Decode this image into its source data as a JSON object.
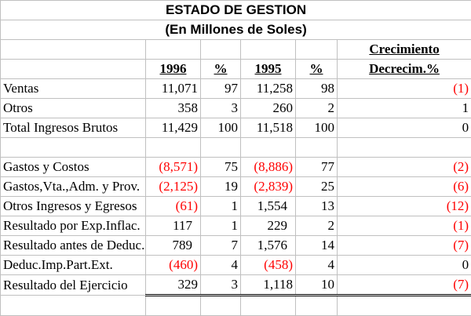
{
  "title": "ESTADO DE GESTION",
  "subtitle": "(En Millones de Soles)",
  "header": {
    "growth_line1": "Crecimiento",
    "col_1996": "1996",
    "pct1": "%",
    "col_1995": "1995",
    "pct2": "%",
    "growth_line2": "Decrecim.%"
  },
  "colors": {
    "negative": "#ff0000",
    "grid": "#c0c0c0"
  },
  "rows": [
    {
      "label": "Ventas",
      "v1996": "11,071",
      "p1996": "97",
      "v1995": "11,258",
      "p1995": "98",
      "growth": "(1)"
    },
    {
      "label": "Otros",
      "v1996": "358",
      "p1996": "3",
      "v1995": "260",
      "p1995": "2",
      "growth": "1"
    },
    {
      "label": "Total Ingresos Brutos",
      "v1996": "11,429",
      "p1996": "100",
      "v1995": "11,518",
      "p1995": "100",
      "growth": "0"
    },
    {
      "label": "Gastos y Costos",
      "v1996": "(8,571)",
      "p1996": "75",
      "v1995": "(8,886)",
      "p1995": "77",
      "growth": "(2)"
    },
    {
      "label": "Gastos,Vta.,Adm. y Prov.",
      "v1996": "(2,125)",
      "p1996": "19",
      "v1995": "(2,839)",
      "p1995": "25",
      "growth": "(6)"
    },
    {
      "label": "Otros Ingresos y Egresos",
      "v1996": "(61)",
      "p1996": "1",
      "v1995": "1,554",
      "p1995": "13",
      "growth": "(12)"
    },
    {
      "label": "Resultado por Exp.Inflac.",
      "v1996": "117",
      "p1996": "1",
      "v1995": "229",
      "p1995": "2",
      "growth": "(1)"
    },
    {
      "label": "Resultado antes de Deduc.",
      "v1996": "789",
      "p1996": "7",
      "v1995": "1,576",
      "p1995": "14",
      "growth": "(7)"
    },
    {
      "label": "Deduc.Imp.Part.Ext.",
      "v1996": "(460)",
      "p1996": "4",
      "v1995": "(458)",
      "p1995": "4",
      "growth": "0"
    },
    {
      "label": "Resultado del Ejercicio",
      "v1996": "329",
      "p1996": "3",
      "v1995": "1,118",
      "p1995": "10",
      "growth": "(7)"
    }
  ]
}
